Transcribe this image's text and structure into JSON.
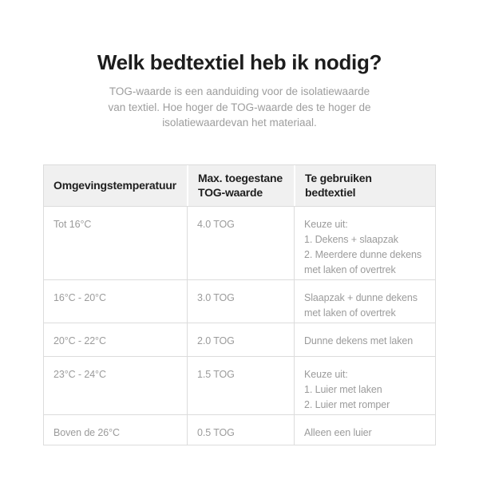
{
  "header": {
    "title": "Welk bedtextiel heb ik nodig?",
    "subtitle_lines": [
      "TOG-waarde is een aanduiding voor de isolatiewaarde",
      "van textiel. Hoe hoger de TOG-waarde des te hoger de",
      "isolatiewaardevan het materiaal."
    ]
  },
  "table": {
    "columns": [
      {
        "lines": [
          "Omgevingstemperatuur"
        ]
      },
      {
        "lines": [
          "Max. toegestane",
          "TOG-waarde"
        ]
      },
      {
        "lines": [
          "Te gebruiken",
          "bedtextiel"
        ]
      }
    ],
    "rows": [
      {
        "temperature": "Tot 16°C",
        "tog": "4.0 TOG",
        "bedtextiel": [
          "Keuze uit:",
          "1. Dekens + slaapzak",
          "2. Meerdere dunne dekens met laken of overtrek"
        ]
      },
      {
        "temperature": "16°C - 20°C",
        "tog": "3.0 TOG",
        "bedtextiel": [
          "Slaapzak + dunne dekens met laken of overtrek"
        ]
      },
      {
        "temperature": "20°C - 22°C",
        "tog": "2.0 TOG",
        "bedtextiel": [
          "Dunne dekens met laken"
        ]
      },
      {
        "temperature": "23°C - 24°C",
        "tog": "1.5 TOG",
        "bedtextiel": [
          "Keuze uit:",
          "1. Luier met laken",
          "2. Luier met romper"
        ]
      },
      {
        "temperature": "Boven de 26°C",
        "tog": "0.5 TOG",
        "bedtextiel": [
          "Alleen een luier"
        ]
      }
    ]
  },
  "colors": {
    "page_bg": "#ffffff",
    "header_bg": "#f0f0f0",
    "border": "#dcdcdc",
    "heading_text": "#1d1d1d",
    "body_text": "#9b9b9b"
  }
}
